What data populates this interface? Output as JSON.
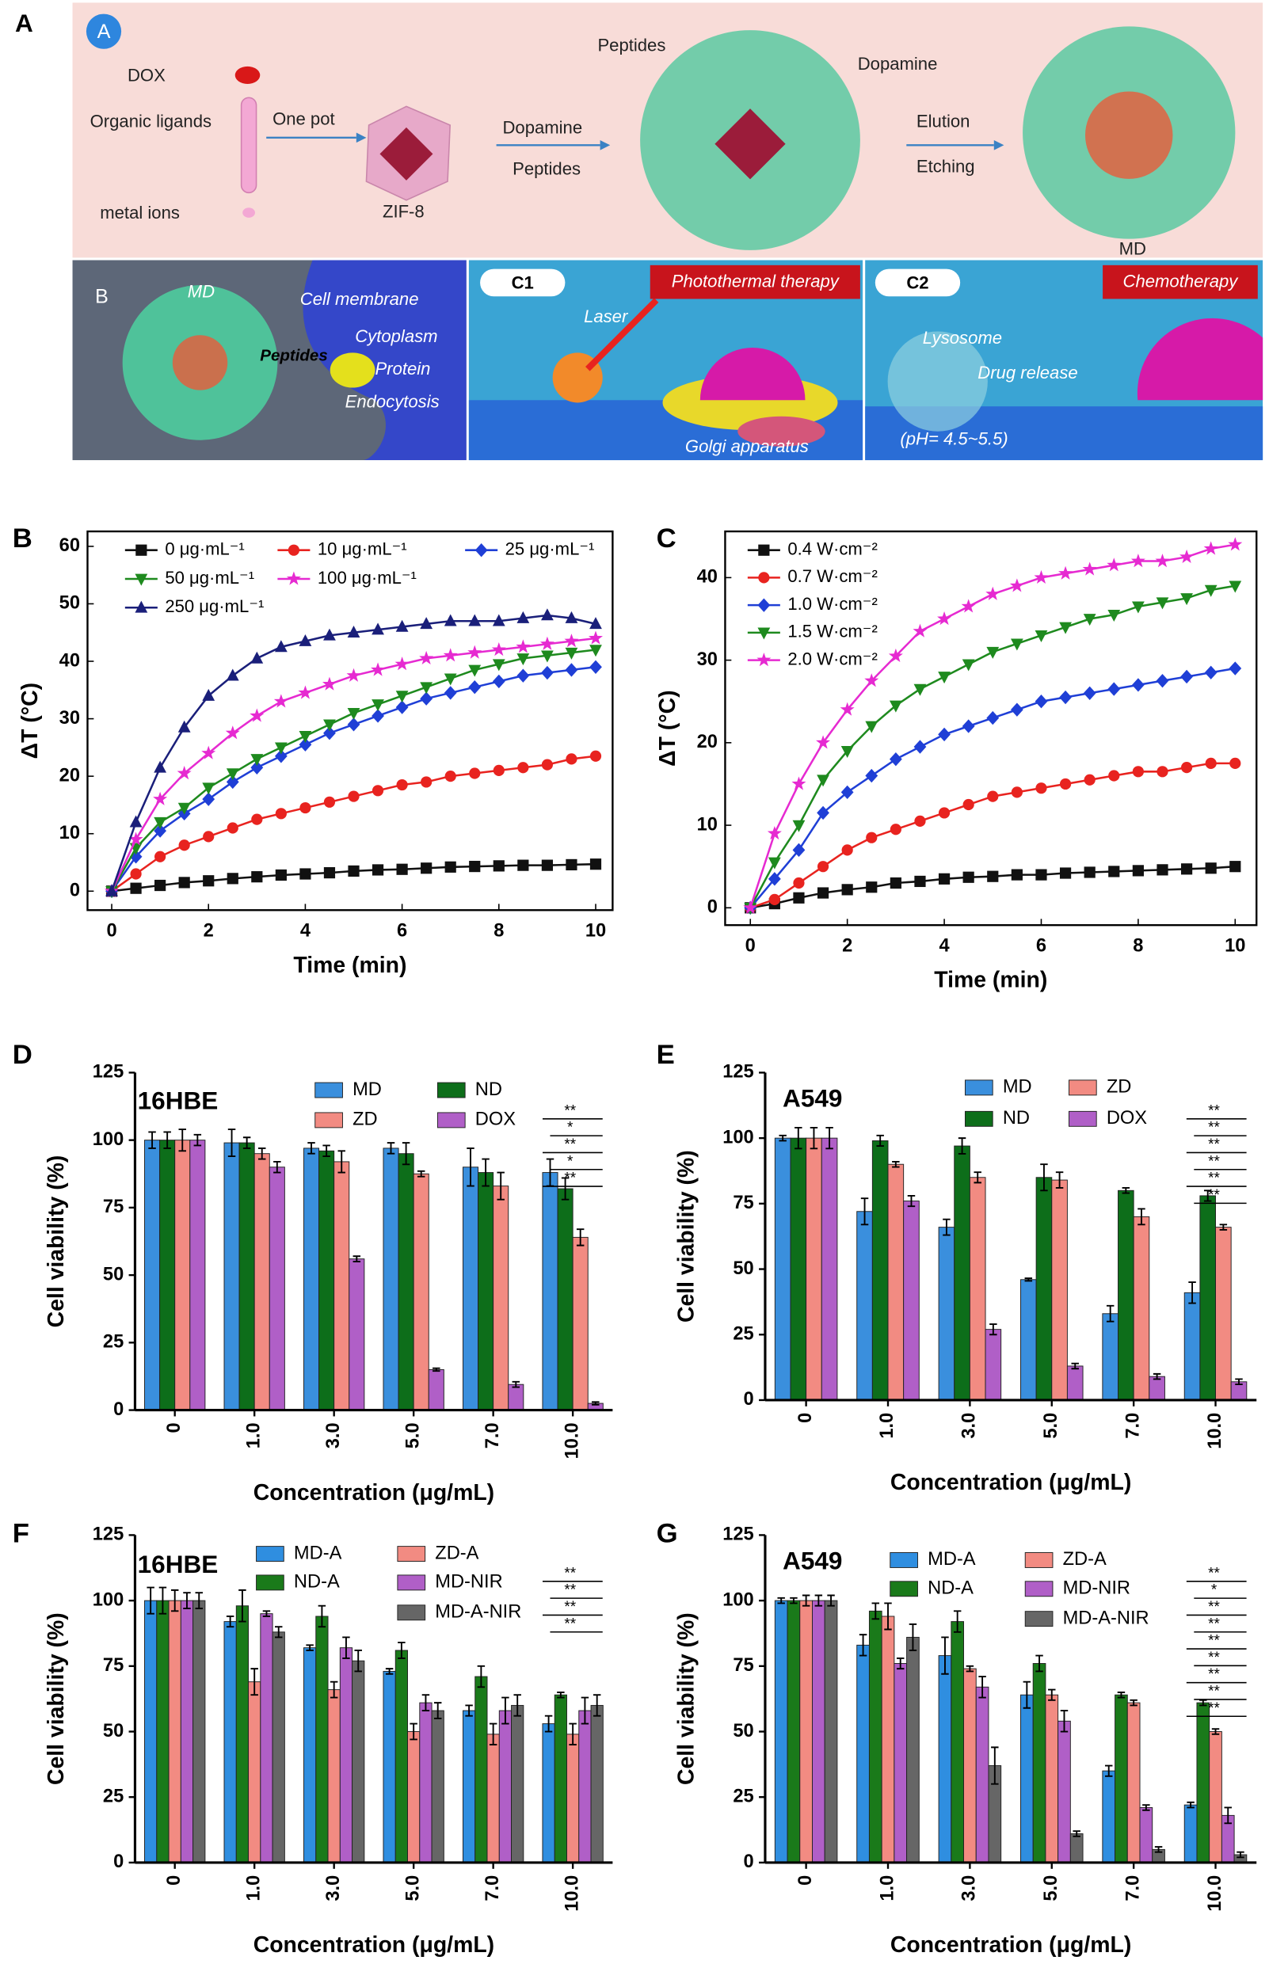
{
  "schematic": {
    "panel_label": "A",
    "a_tag": "A",
    "dox": "DOX",
    "organic_ligands": "Organic ligands",
    "metal_ions": "metal ions",
    "one_pot": "One pot",
    "zif8": "ZIF-8",
    "dopamine": "Dopamine",
    "peptides": "Peptides",
    "peptides_top": "Peptides",
    "dopamine_top": "Dopamine",
    "elution": "Elution",
    "etching": "Etching",
    "md": "MD",
    "b_tag": "B",
    "b_md": "MD",
    "cell_membrane": "Cell membrane",
    "cytoplasm": "Cytoplasm",
    "b_peptides": "Peptides",
    "protein": "Protein",
    "endocytosis": "Endocytosis",
    "c1_tag": "C1",
    "photothermal": "Photothermal therapy",
    "laser": "Laser",
    "golgi": "Golgi apparatus",
    "c2_tag": "C2",
    "chemotherapy": "Chemotherapy",
    "lysosome": "Lysosome",
    "drug_release": "Drug release",
    "ph": "(pH= 4.5~5.5)"
  },
  "chart_data": [
    {
      "type": "line",
      "label": "B",
      "xlabel": "Time (min)",
      "ylabel": "ΔT (°C)",
      "x": [
        0,
        0.5,
        1,
        1.5,
        2,
        2.5,
        3,
        3.5,
        4,
        4.5,
        5,
        5.5,
        6,
        6.5,
        7,
        7.5,
        8,
        8.5,
        9,
        9.5,
        10
      ],
      "xlim": [
        -0.5,
        10.35
      ],
      "xticks": [
        0,
        2,
        4,
        6,
        8,
        10
      ],
      "ylim": [
        -3.3,
        62.6
      ],
      "yticks": [
        0,
        10,
        20,
        30,
        40,
        50,
        60
      ],
      "series": [
        {
          "name": "0 μg·mL⁻¹",
          "color": "#111111",
          "marker": "square",
          "values": [
            0,
            0.5,
            1,
            1.5,
            1.8,
            2.2,
            2.5,
            2.8,
            3,
            3.2,
            3.5,
            3.7,
            3.8,
            4,
            4.2,
            4.3,
            4.4,
            4.5,
            4.5,
            4.6,
            4.7
          ]
        },
        {
          "name": "10 μg·mL⁻¹",
          "color": "#e8231f",
          "marker": "circle",
          "values": [
            0,
            3,
            6,
            8,
            9.5,
            11,
            12.5,
            13.5,
            14.5,
            15.5,
            16.5,
            17.5,
            18.5,
            19,
            20,
            20.5,
            21,
            21.5,
            22,
            23,
            23.5
          ]
        },
        {
          "name": "25 μg·mL⁻¹",
          "color": "#1f3fd6",
          "marker": "diamond",
          "values": [
            0,
            6,
            10.5,
            13.5,
            16,
            19,
            21.5,
            23.5,
            25.5,
            27.5,
            29,
            30.5,
            32,
            33.5,
            34.5,
            35.5,
            36.5,
            37.5,
            38,
            38.5,
            39
          ]
        },
        {
          "name": "50 μg·mL⁻¹",
          "color": "#1e8a1e",
          "marker": "tri-down",
          "values": [
            0,
            7.5,
            12,
            14.5,
            18,
            20.5,
            23,
            25,
            27,
            29,
            31,
            32.5,
            34,
            35.5,
            37,
            38.5,
            39.5,
            40.5,
            41,
            41.5,
            42
          ]
        },
        {
          "name": "100 μg·mL⁻¹",
          "color": "#e62ad1",
          "marker": "star",
          "values": [
            0,
            9,
            16,
            20.5,
            24,
            27.5,
            30.5,
            33,
            34.5,
            36,
            37.5,
            38.5,
            39.5,
            40.5,
            41,
            41.5,
            42,
            42.5,
            43,
            43.5,
            44
          ]
        },
        {
          "name": "250 μg·mL⁻¹",
          "color": "#1a1f7a",
          "marker": "tri-up",
          "values": [
            0,
            12,
            21.5,
            28.5,
            34,
            37.5,
            40.5,
            42.5,
            43.5,
            44.5,
            45,
            45.5,
            46,
            46.5,
            47,
            47,
            47,
            47.5,
            48,
            47.5,
            46.5
          ]
        }
      ]
    },
    {
      "type": "line",
      "label": "C",
      "xlabel": "Time (min)",
      "ylabel": "ΔT (°C)",
      "x": [
        0,
        0.5,
        1,
        1.5,
        2,
        2.5,
        3,
        3.5,
        4,
        4.5,
        5,
        5.5,
        6,
        6.5,
        7,
        7.5,
        8,
        8.5,
        9,
        9.5,
        10
      ],
      "xlim": [
        -0.52,
        10.44
      ],
      "xticks": [
        0,
        2,
        4,
        6,
        8,
        10
      ],
      "ylim": [
        -2.1,
        45.6
      ],
      "yticks": [
        0,
        10,
        20,
        30,
        40
      ],
      "series": [
        {
          "name": "0.4 W·cm⁻²",
          "color": "#111111",
          "marker": "square",
          "values": [
            0,
            0.5,
            1.2,
            1.8,
            2.2,
            2.5,
            3,
            3.2,
            3.5,
            3.7,
            3.8,
            4,
            4,
            4.2,
            4.3,
            4.4,
            4.5,
            4.6,
            4.7,
            4.8,
            5
          ]
        },
        {
          "name": "0.7 W·cm⁻²",
          "color": "#e8231f",
          "marker": "circle",
          "values": [
            0,
            1,
            3,
            5,
            7,
            8.5,
            9.5,
            10.5,
            11.5,
            12.5,
            13.5,
            14,
            14.5,
            15,
            15.5,
            16,
            16.5,
            16.5,
            17,
            17.5,
            17.5
          ]
        },
        {
          "name": "1.0 W·cm⁻²",
          "color": "#1f3fd6",
          "marker": "diamond",
          "values": [
            0,
            3.5,
            7,
            11.5,
            14,
            16,
            18,
            19.5,
            21,
            22,
            23,
            24,
            25,
            25.5,
            26,
            26.5,
            27,
            27.5,
            28,
            28.5,
            29
          ]
        },
        {
          "name": "1.5 W·cm⁻²",
          "color": "#1e8a1e",
          "marker": "tri-down",
          "values": [
            0,
            5.5,
            10,
            15.5,
            19,
            22,
            24.5,
            26.5,
            28,
            29.5,
            31,
            32,
            33,
            34,
            35,
            35.5,
            36.5,
            37,
            37.5,
            38.5,
            39
          ]
        },
        {
          "name": "2.0 W·cm⁻²",
          "color": "#e62ad1",
          "marker": "star",
          "values": [
            0,
            9,
            15,
            20,
            24,
            27.5,
            30.5,
            33.5,
            35,
            36.5,
            38,
            39,
            40,
            40.5,
            41,
            41.5,
            42,
            42,
            42.5,
            43.5,
            44
          ]
        }
      ]
    },
    {
      "type": "bar",
      "label": "D",
      "title": "16HBE",
      "xlabel": "Concentration (μg/mL)",
      "ylabel": "Cell viability (%)",
      "categories": [
        "0",
        "1.0",
        "3.0",
        "5.0",
        "7.0",
        "10.0"
      ],
      "ylim": [
        0,
        125
      ],
      "yticks": [
        0,
        25,
        50,
        75,
        100,
        125
      ],
      "series": [
        {
          "name": "MD",
          "color": "#3a8fdd",
          "values": [
            100,
            99,
            97,
            97,
            90,
            88
          ],
          "errors": [
            3,
            5,
            2,
            2,
            7,
            5
          ]
        },
        {
          "name": "ND",
          "color": "#0d6e1a",
          "values": [
            100,
            99,
            96,
            95,
            88,
            82
          ],
          "errors": [
            3,
            2,
            2,
            4,
            5,
            4
          ]
        },
        {
          "name": "ZD",
          "color": "#f28b82",
          "values": [
            100,
            95,
            92,
            87.5,
            83,
            64
          ],
          "errors": [
            4,
            2,
            4,
            1,
            5,
            3
          ]
        },
        {
          "name": "DOX",
          "color": "#b05fc7",
          "values": [
            100,
            90,
            56,
            15,
            9.5,
            2.5
          ],
          "errors": [
            2,
            2,
            1,
            0.5,
            1,
            0.5
          ]
        }
      ],
      "annotations": [
        "**",
        "*",
        "**",
        "*",
        "**"
      ]
    },
    {
      "type": "bar",
      "label": "E",
      "title": "A549",
      "xlabel": "Concentration (μg/mL)",
      "ylabel": "Cell viability (%)",
      "categories": [
        "0",
        "1.0",
        "3.0",
        "5.0",
        "7.0",
        "10.0"
      ],
      "ylim": [
        0,
        125
      ],
      "yticks": [
        0,
        25,
        50,
        75,
        100,
        125
      ],
      "series": [
        {
          "name": "MD",
          "color": "#3a8fdd",
          "values": [
            100,
            72,
            66,
            46,
            33,
            41
          ],
          "errors": [
            1,
            5,
            3,
            0.5,
            3,
            4
          ]
        },
        {
          "name": "ND",
          "color": "#0d6e1a",
          "values": [
            100,
            99,
            97,
            85,
            80,
            78
          ],
          "errors": [
            4,
            2,
            3,
            5,
            1,
            2
          ]
        },
        {
          "name": "ZD",
          "color": "#f28b82",
          "values": [
            100,
            90,
            85,
            84,
            70,
            66
          ],
          "errors": [
            4,
            1,
            2,
            3,
            3,
            1
          ]
        },
        {
          "name": "DOX",
          "color": "#b05fc7",
          "values": [
            100,
            76,
            27,
            13,
            9,
            7
          ],
          "errors": [
            4,
            2,
            2,
            1,
            1,
            1
          ]
        }
      ],
      "annotations": [
        "**",
        "**",
        "**",
        "**",
        "**",
        "**"
      ]
    },
    {
      "type": "bar",
      "label": "F",
      "title": "16HBE",
      "xlabel": "Concentration (μg/mL)",
      "ylabel": "Cell viability (%)",
      "categories": [
        "0",
        "1.0",
        "3.0",
        "5.0",
        "7.0",
        "10.0"
      ],
      "ylim": [
        0,
        125
      ],
      "yticks": [
        0,
        25,
        50,
        75,
        100,
        125
      ],
      "series": [
        {
          "name": "MD-A",
          "color": "#2f8ee0",
          "values": [
            100,
            92,
            82,
            73,
            58,
            53
          ],
          "errors": [
            5,
            2,
            1,
            1,
            2,
            3
          ]
        },
        {
          "name": "ND-A",
          "color": "#1a7a1a",
          "values": [
            100,
            98,
            94,
            81,
            71,
            64
          ],
          "errors": [
            5,
            6,
            4,
            3,
            4,
            1
          ]
        },
        {
          "name": "ZD-A",
          "color": "#f28b82",
          "values": [
            100,
            69,
            66,
            50,
            49,
            49
          ],
          "errors": [
            4,
            5,
            3,
            3,
            4,
            4
          ]
        },
        {
          "name": "MD-NIR",
          "color": "#b05fc7",
          "values": [
            100,
            95,
            82,
            61,
            58,
            58
          ],
          "errors": [
            3,
            1,
            4,
            3,
            5,
            5
          ]
        },
        {
          "name": "MD-A-NIR",
          "color": "#666666",
          "values": [
            100,
            88,
            77,
            58,
            60,
            60
          ],
          "errors": [
            3,
            2,
            4,
            3,
            4,
            4
          ]
        }
      ],
      "annotations": [
        "**",
        "**",
        "**",
        "**"
      ]
    },
    {
      "type": "bar",
      "label": "G",
      "title": "A549",
      "xlabel": "Concentration (μg/mL)",
      "ylabel": "Cell viability (%)",
      "categories": [
        "0",
        "1.0",
        "3.0",
        "5.0",
        "7.0",
        "10.0"
      ],
      "ylim": [
        0,
        125
      ],
      "yticks": [
        0,
        25,
        50,
        75,
        100,
        125
      ],
      "series": [
        {
          "name": "MD-A",
          "color": "#2f8ee0",
          "values": [
            100,
            83,
            79,
            64,
            35,
            22
          ],
          "errors": [
            1,
            4,
            7,
            5,
            2,
            1
          ]
        },
        {
          "name": "ND-A",
          "color": "#1a7a1a",
          "values": [
            100,
            96,
            92,
            76,
            64,
            61
          ],
          "errors": [
            1,
            3,
            4,
            3,
            1,
            1
          ]
        },
        {
          "name": "ZD-A",
          "color": "#f28b82",
          "values": [
            100,
            94,
            74,
            64,
            61,
            50
          ],
          "errors": [
            2,
            5,
            1,
            2,
            1,
            1
          ]
        },
        {
          "name": "MD-NIR",
          "color": "#b05fc7",
          "values": [
            100,
            76,
            67,
            54,
            21,
            18
          ],
          "errors": [
            2,
            2,
            4,
            4,
            1,
            3
          ]
        },
        {
          "name": "MD-A-NIR",
          "color": "#666666",
          "values": [
            100,
            86,
            37,
            11,
            5,
            3
          ],
          "errors": [
            2,
            5,
            7,
            1,
            1,
            1
          ]
        }
      ],
      "annotations": [
        "**",
        "*",
        "**",
        "**",
        "**",
        "**",
        "**",
        "**",
        "**"
      ]
    }
  ]
}
